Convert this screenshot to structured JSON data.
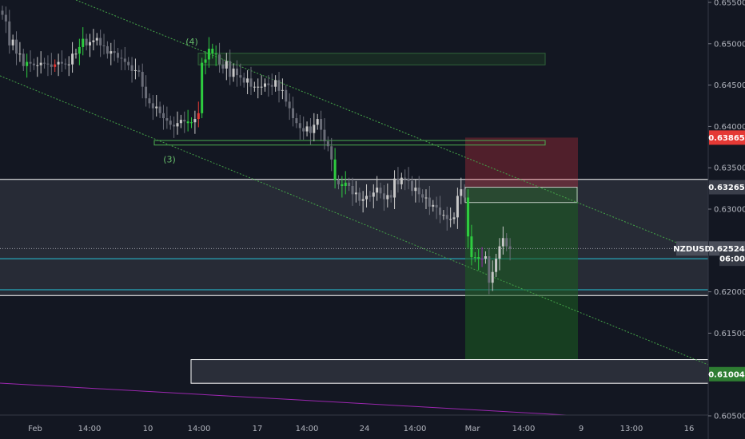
{
  "chart_data": {
    "type": "candlestick",
    "symbol": "NZDUSD",
    "y_ticks": [
      "0.65500",
      "0.65000",
      "0.64500",
      "0.64000",
      "0.63500",
      "0.63000",
      "0.62500",
      "0.62000",
      "0.61500",
      "0.61000",
      "0.60500"
    ],
    "x_ticks": [
      "Feb",
      "14:00",
      "10",
      "14:00",
      "17",
      "14:00",
      "24",
      "14:00",
      "Mar",
      "14:00",
      "9",
      "13:00",
      "16"
    ],
    "ylim": [
      0.6047,
      0.6552
    ],
    "price_badges": [
      {
        "label": "0.63865",
        "price": 0.63865,
        "color": "#e53935"
      },
      {
        "label": "0.63265",
        "price": 0.63265,
        "color": "#3a3e4a"
      },
      {
        "label": "NZDUSD",
        "sublabel": "0.62524",
        "price": 0.62524,
        "color": "#4a4e5a"
      },
      {
        "label": "06:00",
        "price": 0.624,
        "color": "#363a45"
      },
      {
        "label": "0.61004",
        "price": 0.61004,
        "color": "#2e7d32"
      }
    ],
    "wave_labels": [
      {
        "text": "(4)",
        "price": 0.6499
      },
      {
        "text": "(3)",
        "price": 0.6366
      }
    ],
    "zones": [
      {
        "name": "upper-supply-zone",
        "top": 0.64885,
        "bottom": 0.64745
      },
      {
        "name": "wave3-zone",
        "top": 0.6383,
        "bottom": 0.63775
      },
      {
        "name": "grey-range-zone",
        "top": 0.6336,
        "bottom": 0.61955
      },
      {
        "name": "lower-demand-zone",
        "top": 0.6118,
        "bottom": 0.60894
      },
      {
        "name": "entry-zone",
        "top": 0.63265,
        "bottom": 0.6308
      }
    ],
    "position": {
      "entry": 0.63265,
      "stop": 0.63865,
      "target": 0.61004
    },
    "levels": {
      "cyan_top": 0.624,
      "cyan_bottom": 0.62025,
      "last_price": 0.62524
    },
    "candles": []
  }
}
